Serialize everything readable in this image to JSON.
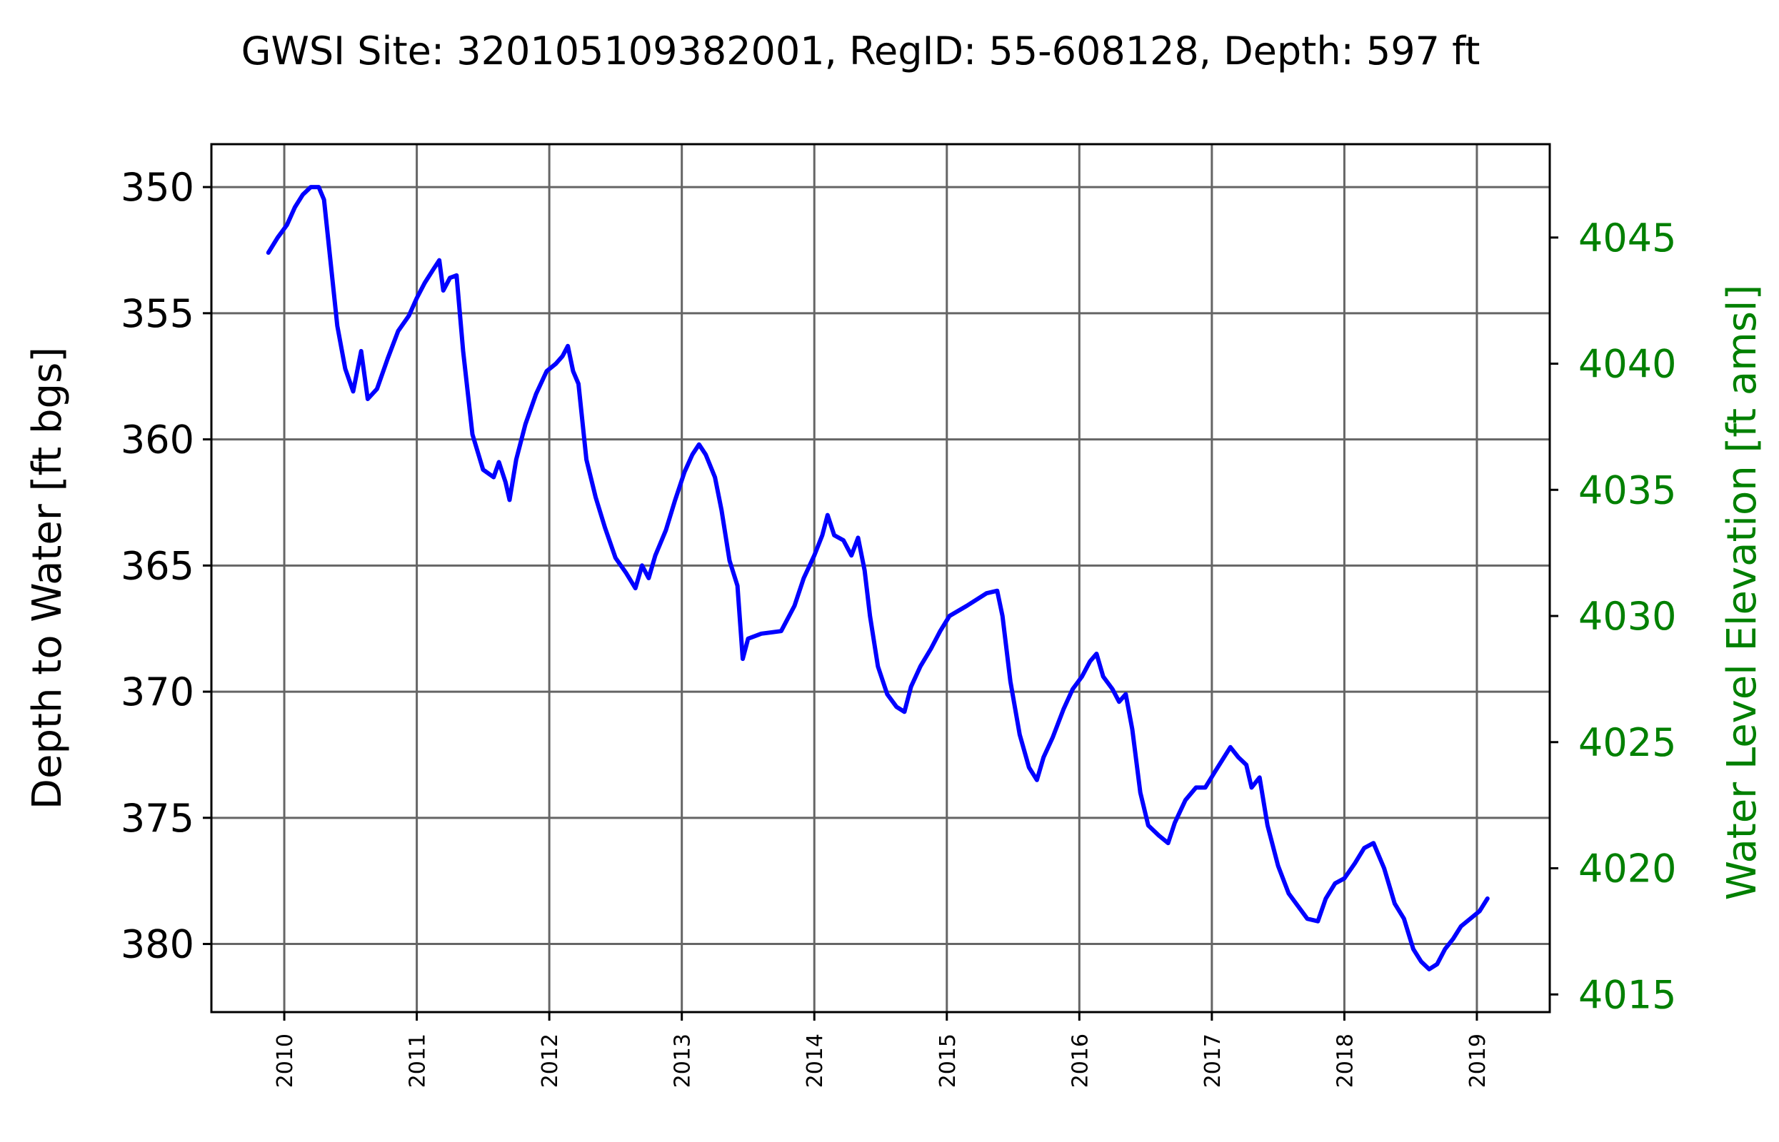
{
  "chart_data": {
    "type": "line",
    "title": "GWSI Site: 320105109382001, RegID: 55-608128, Depth: 597 ft",
    "ylabel": "Depth to Water [ft bgs]",
    "y2label": "Water Level Elevation [ft amsl]",
    "xlim": [
      2009.45,
      2019.55
    ],
    "ylim": [
      382.7,
      348.3
    ],
    "y2lim": [
      4014.3,
      4048.7
    ],
    "y_inverted": true,
    "grid": true,
    "x_ticks": [
      2010,
      2011,
      2012,
      2013,
      2014,
      2015,
      2016,
      2017,
      2018,
      2019
    ],
    "x_tick_labels": [
      "2010",
      "2011",
      "2012",
      "2013",
      "2014",
      "2015",
      "2016",
      "2017",
      "2018",
      "2019"
    ],
    "y_ticks": [
      350,
      355,
      360,
      365,
      370,
      375,
      380
    ],
    "y_tick_labels": [
      "350",
      "355",
      "360",
      "365",
      "370",
      "375",
      "380"
    ],
    "y2_ticks": [
      4015,
      4020,
      4025,
      4030,
      4035,
      4040,
      4045
    ],
    "y2_tick_labels": [
      "4015",
      "4020",
      "4025",
      "4030",
      "4035",
      "4040",
      "4045"
    ],
    "series": [
      {
        "color": "#0000ff",
        "points": [
          [
            2009.88,
            352.6
          ],
          [
            2009.95,
            352.0
          ],
          [
            2010.02,
            351.5
          ],
          [
            2010.08,
            350.8
          ],
          [
            2010.14,
            350.3
          ],
          [
            2010.2,
            350.0
          ],
          [
            2010.26,
            350.0
          ],
          [
            2010.3,
            350.5
          ],
          [
            2010.35,
            353.0
          ],
          [
            2010.4,
            355.5
          ],
          [
            2010.46,
            357.2
          ],
          [
            2010.52,
            358.1
          ],
          [
            2010.58,
            356.5
          ],
          [
            2010.63,
            358.4
          ],
          [
            2010.7,
            358.0
          ],
          [
            2010.78,
            356.8
          ],
          [
            2010.86,
            355.7
          ],
          [
            2010.94,
            355.1
          ],
          [
            2011.0,
            354.4
          ],
          [
            2011.06,
            353.8
          ],
          [
            2011.12,
            353.3
          ],
          [
            2011.17,
            352.9
          ],
          [
            2011.2,
            354.1
          ],
          [
            2011.25,
            353.6
          ],
          [
            2011.3,
            353.5
          ],
          [
            2011.35,
            356.5
          ],
          [
            2011.42,
            359.8
          ],
          [
            2011.5,
            361.2
          ],
          [
            2011.58,
            361.5
          ],
          [
            2011.62,
            360.9
          ],
          [
            2011.67,
            361.7
          ],
          [
            2011.7,
            362.4
          ],
          [
            2011.75,
            360.8
          ],
          [
            2011.82,
            359.4
          ],
          [
            2011.9,
            358.2
          ],
          [
            2011.98,
            357.3
          ],
          [
            2012.05,
            357.0
          ],
          [
            2012.1,
            356.7
          ],
          [
            2012.14,
            356.3
          ],
          [
            2012.18,
            357.3
          ],
          [
            2012.22,
            357.8
          ],
          [
            2012.28,
            360.8
          ],
          [
            2012.35,
            362.3
          ],
          [
            2012.42,
            363.5
          ],
          [
            2012.5,
            364.7
          ],
          [
            2012.58,
            365.3
          ],
          [
            2012.65,
            365.9
          ],
          [
            2012.7,
            365.0
          ],
          [
            2012.75,
            365.5
          ],
          [
            2012.8,
            364.6
          ],
          [
            2012.88,
            363.6
          ],
          [
            2012.95,
            362.4
          ],
          [
            2013.02,
            361.3
          ],
          [
            2013.08,
            360.6
          ],
          [
            2013.13,
            360.2
          ],
          [
            2013.18,
            360.6
          ],
          [
            2013.25,
            361.5
          ],
          [
            2013.3,
            362.8
          ],
          [
            2013.36,
            364.8
          ],
          [
            2013.42,
            365.8
          ],
          [
            2013.46,
            368.7
          ],
          [
            2013.5,
            367.9
          ],
          [
            2013.6,
            367.7
          ],
          [
            2013.75,
            367.6
          ],
          [
            2013.85,
            366.6
          ],
          [
            2013.92,
            365.5
          ],
          [
            2014.0,
            364.6
          ],
          [
            2014.06,
            363.8
          ],
          [
            2014.1,
            363.0
          ],
          [
            2014.15,
            363.8
          ],
          [
            2014.22,
            364.0
          ],
          [
            2014.28,
            364.6
          ],
          [
            2014.33,
            363.9
          ],
          [
            2014.38,
            365.2
          ],
          [
            2014.42,
            367.0
          ],
          [
            2014.48,
            369.0
          ],
          [
            2014.55,
            370.1
          ],
          [
            2014.62,
            370.6
          ],
          [
            2014.68,
            370.8
          ],
          [
            2014.73,
            369.8
          ],
          [
            2014.8,
            369.0
          ],
          [
            2014.88,
            368.3
          ],
          [
            2014.95,
            367.6
          ],
          [
            2015.02,
            367.0
          ],
          [
            2015.15,
            366.6
          ],
          [
            2015.3,
            366.1
          ],
          [
            2015.38,
            366.0
          ],
          [
            2015.42,
            367.0
          ],
          [
            2015.48,
            369.6
          ],
          [
            2015.55,
            371.7
          ],
          [
            2015.62,
            373.0
          ],
          [
            2015.68,
            373.5
          ],
          [
            2015.73,
            372.6
          ],
          [
            2015.8,
            371.8
          ],
          [
            2015.88,
            370.7
          ],
          [
            2015.95,
            369.9
          ],
          [
            2016.02,
            369.4
          ],
          [
            2016.08,
            368.8
          ],
          [
            2016.13,
            368.5
          ],
          [
            2016.18,
            369.4
          ],
          [
            2016.25,
            369.9
          ],
          [
            2016.3,
            370.4
          ],
          [
            2016.35,
            370.1
          ],
          [
            2016.4,
            371.5
          ],
          [
            2016.46,
            374.0
          ],
          [
            2016.52,
            375.3
          ],
          [
            2016.6,
            375.7
          ],
          [
            2016.67,
            376.0
          ],
          [
            2016.72,
            375.2
          ],
          [
            2016.8,
            374.3
          ],
          [
            2016.88,
            373.8
          ],
          [
            2016.95,
            373.8
          ],
          [
            2017.02,
            373.2
          ],
          [
            2017.08,
            372.7
          ],
          [
            2017.14,
            372.2
          ],
          [
            2017.2,
            372.6
          ],
          [
            2017.26,
            372.9
          ],
          [
            2017.3,
            373.8
          ],
          [
            2017.36,
            373.4
          ],
          [
            2017.42,
            375.3
          ],
          [
            2017.5,
            376.9
          ],
          [
            2017.58,
            378.0
          ],
          [
            2017.65,
            378.5
          ],
          [
            2017.72,
            379.0
          ],
          [
            2017.8,
            379.1
          ],
          [
            2017.86,
            378.2
          ],
          [
            2017.93,
            377.6
          ],
          [
            2018.0,
            377.4
          ],
          [
            2018.08,
            376.8
          ],
          [
            2018.15,
            376.2
          ],
          [
            2018.22,
            376.0
          ],
          [
            2018.3,
            377.0
          ],
          [
            2018.38,
            378.4
          ],
          [
            2018.45,
            379.0
          ],
          [
            2018.52,
            380.2
          ],
          [
            2018.58,
            380.7
          ],
          [
            2018.64,
            381.0
          ],
          [
            2018.7,
            380.8
          ],
          [
            2018.76,
            380.2
          ],
          [
            2018.82,
            379.8
          ],
          [
            2018.88,
            379.3
          ],
          [
            2018.95,
            379.0
          ],
          [
            2019.02,
            378.7
          ],
          [
            2019.08,
            378.2
          ]
        ]
      }
    ]
  }
}
